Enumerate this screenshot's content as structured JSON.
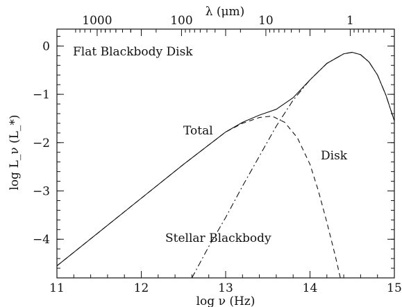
{
  "chart_data": {
    "type": "line",
    "title": "",
    "annotation": "Flat Blackbody Disk",
    "xlabel": "log ν (Hz)",
    "ylabel": "log L_ν (L_*)",
    "top_axis_label": "λ (μm)",
    "xlim": [
      11,
      15
    ],
    "ylim": [
      -4.8,
      0.35
    ],
    "x_ticks": [
      11,
      12,
      13,
      14,
      15
    ],
    "y_ticks": [
      0,
      -1,
      -2,
      -3,
      -4
    ],
    "top_ticks": [
      {
        "label": "1000",
        "lambda_um": 1000
      },
      {
        "label": "100",
        "lambda_um": 100
      },
      {
        "label": "10",
        "lambda_um": 10
      },
      {
        "label": "1",
        "lambda_um": 1
      }
    ],
    "x_tick_labels": [
      "11",
      "12",
      "13",
      "14",
      "15"
    ],
    "y_tick_labels": [
      "0",
      "−1",
      "−2",
      "−3",
      "−4"
    ],
    "series": [
      {
        "name": "Total",
        "style": "solid",
        "x": [
          11.0,
          11.5,
          12.0,
          12.5,
          13.0,
          13.2,
          13.4,
          13.6,
          13.8,
          14.0,
          14.2,
          14.4,
          14.5,
          14.6,
          14.7,
          14.8,
          14.9,
          15.0
        ],
        "y": [
          -4.55,
          -3.85,
          -3.15,
          -2.45,
          -1.78,
          -1.58,
          -1.43,
          -1.31,
          -1.07,
          -0.7,
          -0.36,
          -0.16,
          -0.13,
          -0.18,
          -0.33,
          -0.6,
          -1.02,
          -1.55
        ]
      },
      {
        "name": "Disk",
        "style": "dashed",
        "x": [
          11.0,
          11.5,
          12.0,
          12.5,
          13.0,
          13.2,
          13.4,
          13.55,
          13.7,
          13.85,
          14.0,
          14.1,
          14.2,
          14.3,
          14.36
        ],
        "y": [
          -4.55,
          -3.85,
          -3.15,
          -2.45,
          -1.78,
          -1.6,
          -1.48,
          -1.45,
          -1.58,
          -1.9,
          -2.45,
          -3.0,
          -3.65,
          -4.35,
          -4.8
        ]
      },
      {
        "name": "Stellar Blackbody",
        "style": "dashdot",
        "x": [
          12.6,
          12.8,
          13.0,
          13.2,
          13.4,
          13.6,
          13.8,
          14.0,
          14.2,
          14.4,
          14.5,
          14.6,
          14.7,
          14.8,
          14.9,
          15.0
        ],
        "y": [
          -4.8,
          -4.15,
          -3.55,
          -2.9,
          -2.28,
          -1.66,
          -1.12,
          -0.7,
          -0.36,
          -0.16,
          -0.13,
          -0.18,
          -0.33,
          -0.6,
          -1.02,
          -1.55
        ]
      }
    ],
    "series_labels": [
      "Total",
      "Disk",
      "Stellar Blackbody"
    ],
    "grid": false,
    "colors": {
      "line": "#111111"
    }
  }
}
